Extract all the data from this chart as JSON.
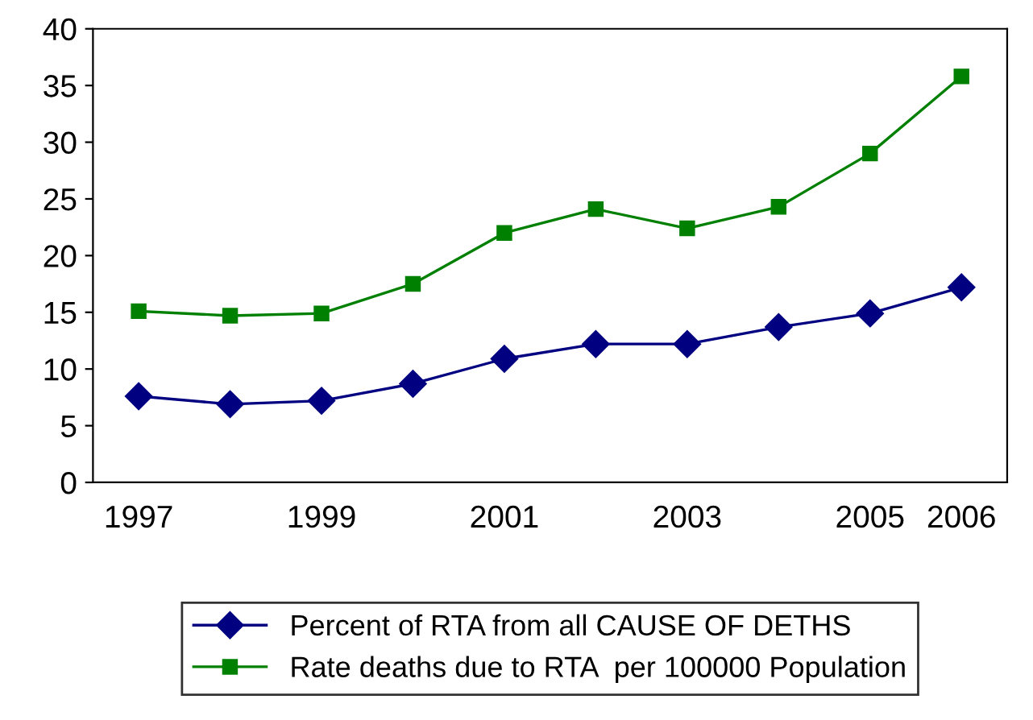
{
  "chart_data": {
    "type": "line",
    "categories": [
      "1997",
      null,
      "1999",
      null,
      "2001",
      null,
      "2003",
      null,
      "2005",
      "2006"
    ],
    "ylim": [
      0,
      40
    ],
    "yticks": [
      0,
      5,
      10,
      15,
      20,
      25,
      30,
      35,
      40
    ],
    "grid": false,
    "legend": "bottom",
    "series": [
      {
        "name": "Percent of RTA from all CAUSE OF DETHS",
        "color": "#000080",
        "marker": "diamond",
        "values": [
          7.6,
          6.9,
          7.2,
          8.7,
          10.9,
          12.2,
          12.2,
          13.7,
          14.9,
          17.2
        ]
      },
      {
        "name": "Rate deaths due to RTA  per 100000 Population",
        "color": "#008000",
        "marker": "square",
        "values": [
          15.1,
          14.7,
          14.9,
          17.5,
          22.0,
          24.1,
          22.4,
          24.3,
          29.0,
          35.8
        ]
      }
    ]
  }
}
